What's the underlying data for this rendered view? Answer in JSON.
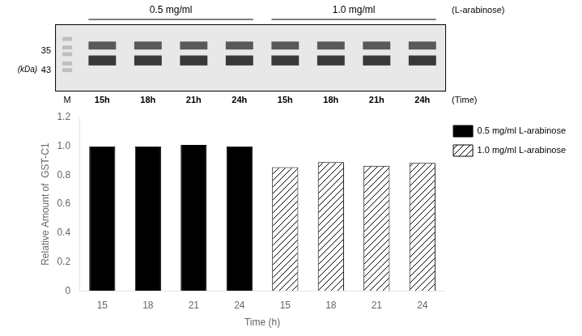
{
  "chart_data": {
    "type": "bar",
    "categories": [
      "15",
      "18",
      "21",
      "24",
      "15",
      "18",
      "21",
      "24"
    ],
    "series": [
      {
        "name": "0.5 mg/ml L-arabinose",
        "color": "#000000",
        "values": [
          1.0,
          1.0,
          1.01,
          1.0,
          null,
          null,
          null,
          null
        ]
      },
      {
        "name": "1.0 mg/ml L-arabinose",
        "color": "#ffffff",
        "values": [
          null,
          null,
          null,
          null,
          0.855,
          0.89,
          0.865,
          0.885
        ]
      }
    ],
    "xlabel": "Time (h)",
    "ylabel": "Relative Amount of  GST-C1",
    "ylim": [
      0,
      1.2
    ],
    "yticks": [
      0,
      0.2,
      0.4,
      0.6,
      0.8,
      {
        "value": 1.0,
        "label": "1.0"
      },
      1.2
    ],
    "grid": false,
    "legend": "right",
    "annotations": [
      "0.5 mg/ml",
      "1.0 mg/ml",
      "(L-arabinose)",
      "(Time)",
      "(kDa)",
      "43",
      "35",
      "M",
      "15h",
      "18h",
      "21h",
      "24h",
      "15h",
      "18h",
      "21h",
      "24h"
    ]
  }
}
